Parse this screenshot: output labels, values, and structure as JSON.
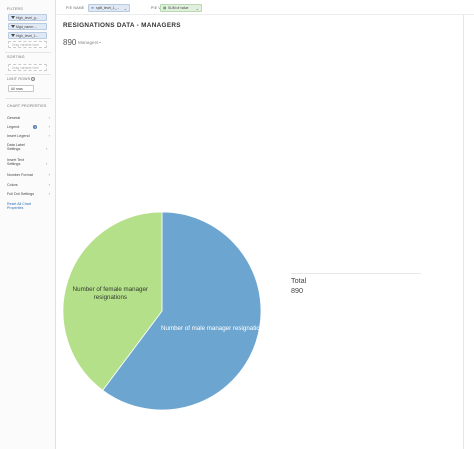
{
  "sidebar": {
    "filters_title": "FILTERS",
    "filters": [
      "High_level_g...",
      "Mgd_name:...",
      "High_level_1..."
    ],
    "filters_dropzone": "Drag variable here",
    "sorting_title": "SORTING",
    "sorting_dropzone": "Drag variable here",
    "limit_title": "LIMIT ROWS",
    "limit_value": "All rows",
    "props_title": "CHART PROPERTIES",
    "props": [
      "General",
      "Legend",
      "Insert Legend",
      "Data Label Settings",
      "Insert Text Settings",
      "Number Format",
      "Colors",
      "Full Dot Settings"
    ],
    "legend_badge": "1",
    "reset_link": "Reset All Chart Properties"
  },
  "topbar": {
    "pie_name_label": "PIE NAME",
    "pie_name_chip": "split_level_1_...",
    "pie_value_label": "PIE VALUE",
    "pie_value_chip": "SUM of value"
  },
  "chart_header": {
    "title": "RESIGNATIONS DATA - MANAGERS",
    "count_value": "890",
    "count_label": "Managers"
  },
  "total": {
    "label": "Total",
    "value": "890"
  },
  "colors": {
    "male": "#6ca6d0",
    "female": "#b5e08a",
    "slice_border": "#ffffff"
  },
  "chart_data": {
    "type": "pie",
    "title": "RESIGNATIONS DATA - MANAGERS",
    "labels": [
      "Number of male manager resignations",
      "Number of female manager resignations"
    ],
    "values": [
      536,
      354
    ],
    "total": 890
  }
}
